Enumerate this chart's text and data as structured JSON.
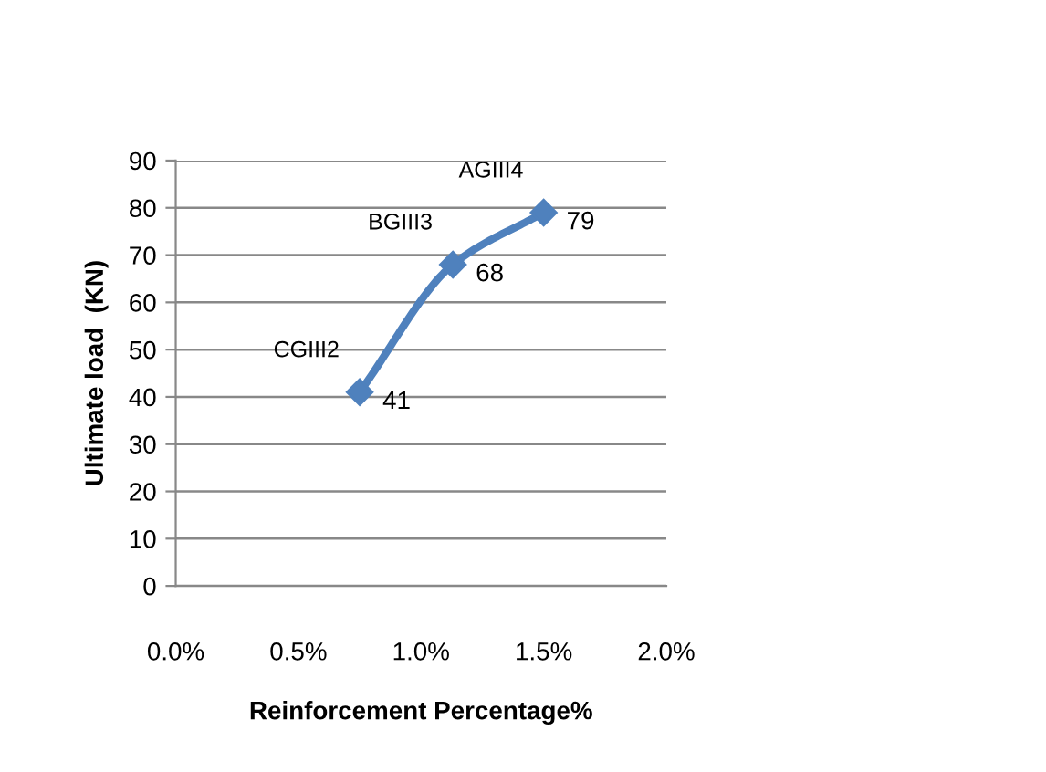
{
  "chart_data": {
    "type": "line",
    "xlabel": "Reinforcement Percentage%",
    "ylabel": "Ultimate load  (KN)",
    "x": [
      0.75,
      1.13,
      1.5
    ],
    "series": [
      {
        "color": "#4f81bd",
        "values": [
          41,
          68,
          79
        ]
      }
    ],
    "marker": "diamond",
    "data_labels": true,
    "grid": "y",
    "annotations": [
      {
        "text": "CGIII2",
        "x": 0.75,
        "y": 41
      },
      {
        "text": "BGIII3",
        "x": 1.13,
        "y": 68
      },
      {
        "text": "AGIII4",
        "x": 1.5,
        "y": 79
      }
    ],
    "xlim": [
      0,
      2
    ],
    "xticks": [
      {
        "value": 0,
        "label": "0.0%"
      },
      {
        "value": 0.5,
        "label": "0.5%"
      },
      {
        "value": 1,
        "label": "1.0%"
      },
      {
        "value": 1.5,
        "label": "1.5%"
      },
      {
        "value": 2,
        "label": "2.0%"
      }
    ],
    "ylim": [
      0,
      90
    ],
    "yticks": [
      0,
      10,
      20,
      30,
      40,
      50,
      60,
      70,
      80,
      90
    ]
  }
}
